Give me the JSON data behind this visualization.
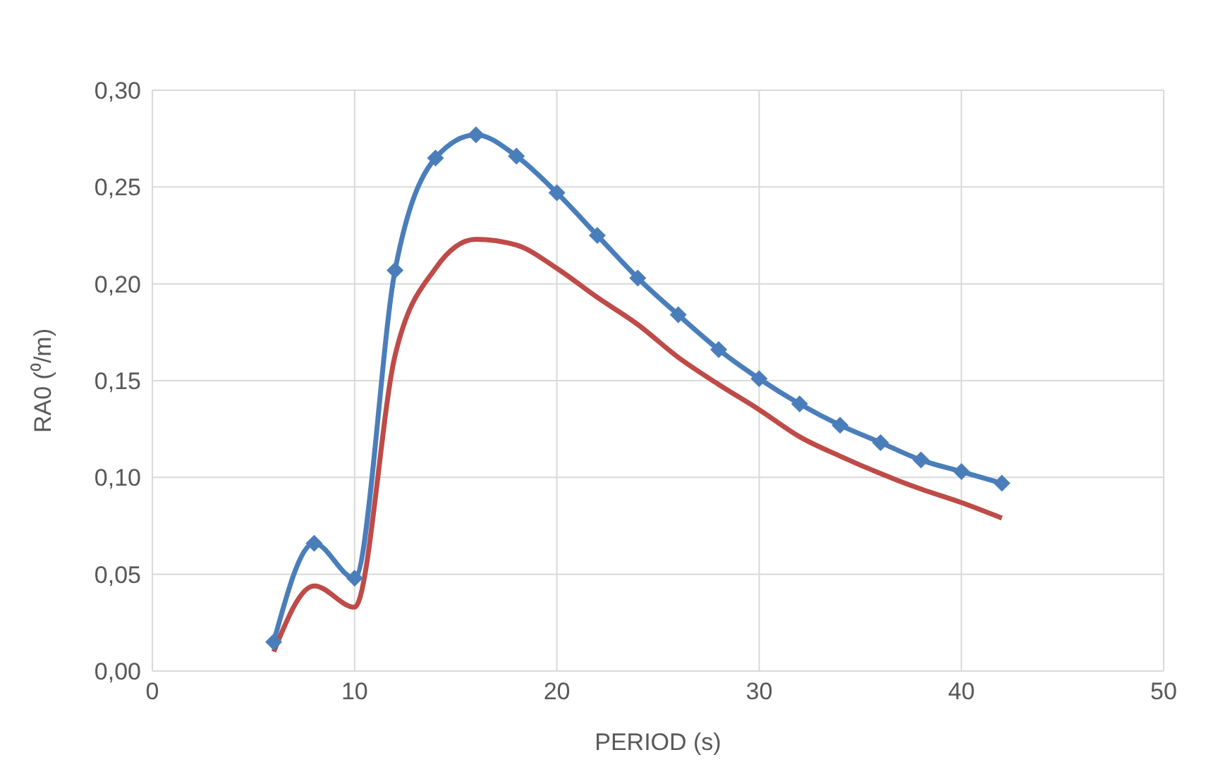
{
  "chart_data": {
    "type": "line",
    "xlabel": "PERIOD (s)",
    "ylabel": "RA0 (⁰/m)",
    "x": [
      6,
      8,
      10,
      12,
      14,
      16,
      18,
      20,
      22,
      24,
      26,
      28,
      30,
      32,
      34,
      36,
      38,
      40,
      42
    ],
    "series": [
      {
        "color": "#4a7ebb",
        "marker": "diamond",
        "values": [
          0.015,
          0.066,
          0.048,
          0.207,
          0.265,
          0.277,
          0.266,
          0.247,
          0.225,
          0.203,
          0.184,
          0.166,
          0.151,
          0.138,
          0.127,
          0.118,
          0.109,
          0.103,
          0.097
        ]
      },
      {
        "color": "#be4b48",
        "marker": "none",
        "values": [
          0.01,
          0.044,
          0.033,
          0.163,
          0.208,
          0.223,
          0.22,
          0.208,
          0.193,
          0.179,
          0.162,
          0.148,
          0.135,
          0.121,
          0.111,
          0.102,
          0.094,
          0.087,
          0.079
        ]
      }
    ],
    "xlim": [
      0,
      50
    ],
    "xticks": [
      0,
      10,
      20,
      30,
      40,
      50
    ],
    "ylim": [
      0,
      0.3
    ],
    "yticks": [
      {
        "value": 0,
        "label": "0,00"
      },
      {
        "value": 0.05,
        "label": "0,05"
      },
      {
        "value": 0.1,
        "label": "0,10"
      },
      {
        "value": 0.15,
        "label": "0,15"
      },
      {
        "value": 0.2,
        "label": "0,20"
      },
      {
        "value": 0.25,
        "label": "0,25"
      },
      {
        "value": 0.3,
        "label": "0,30"
      }
    ],
    "grid": true,
    "line_style": "solid"
  }
}
